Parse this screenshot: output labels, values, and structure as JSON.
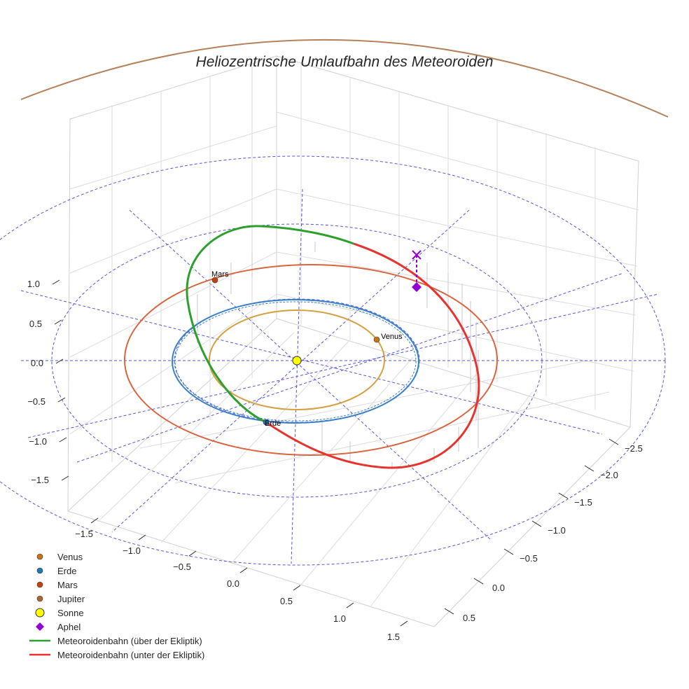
{
  "chart_data": {
    "type": "3d-orbit-plot",
    "title": "Heliozentrische Umlaufbahn des Meteoroiden",
    "x_ticks": [
      "−1.5",
      "−1.0",
      "−0.5",
      "0.0",
      "0.5",
      "1.0",
      "1.5"
    ],
    "y_ticks": [
      "−2.5",
      "−2.0",
      "−1.5",
      "−1.0",
      "−0.5",
      "0.0",
      "0.5"
    ],
    "z_ticks": [
      "−1.5",
      "−1.0",
      "−0.5",
      "0.0",
      "0.5",
      "1.0"
    ],
    "planet_labels": {
      "venus": "Venus",
      "earth": "Erde",
      "mars": "Mars"
    },
    "legend": [
      {
        "label": "Venus",
        "color": "#c87416",
        "kind": "dot"
      },
      {
        "label": "Erde",
        "color": "#1f77b4",
        "kind": "dot"
      },
      {
        "label": "Mars",
        "color": "#c1440e",
        "kind": "dot"
      },
      {
        "label": "Jupiter",
        "color": "#b06530",
        "kind": "dot"
      },
      {
        "label": "Sonne",
        "color": "#ffff00",
        "kind": "sun"
      },
      {
        "label": "Aphel",
        "color": "#9400d3",
        "kind": "diamond"
      },
      {
        "label": "Meteoroidenbahn (über der Ekliptik)",
        "color": "#2ca02c",
        "kind": "line"
      },
      {
        "label": "Meteoroidenbahn (unter der Ekliptik)",
        "color": "#e8322d",
        "kind": "line"
      }
    ],
    "colors": {
      "venus_orbit": "#d4a040",
      "earth_orbit": "#3a80c8",
      "mars_orbit": "#d9643e",
      "jupiter_orbit": "#b5805a",
      "ref_grid": "#5555dd",
      "pane_grid": "#d0d0d0",
      "meteor_above": "#2ca02c",
      "meteor_below": "#e8322d",
      "aphel": "#9400d3"
    }
  }
}
